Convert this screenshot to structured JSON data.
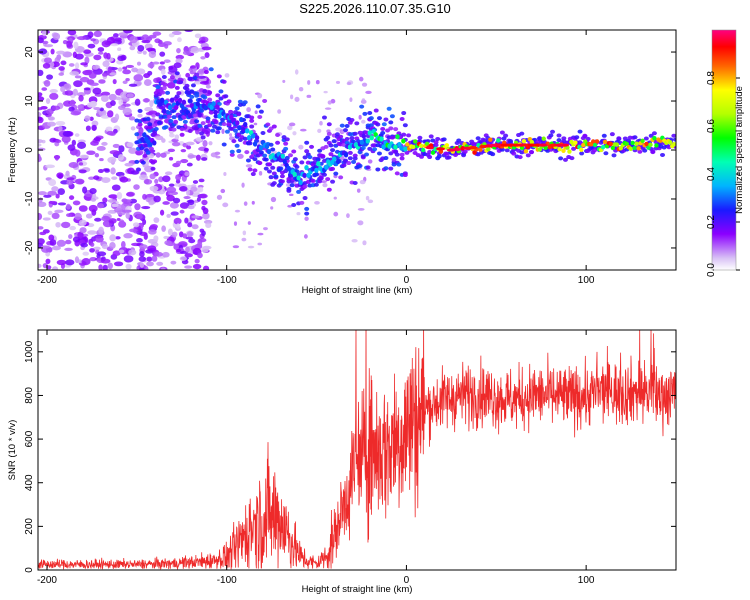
{
  "title": "S225.2026.110.07.35.G10",
  "chart_data": [
    {
      "type": "heatmap",
      "title": "S225.2026.110.07.35.G10",
      "xlabel": "Height of straight line (km)",
      "ylabel": "Frequency (Hz)",
      "xlim": [
        -205,
        150
      ],
      "ylim": [
        -24.5,
        24.5
      ],
      "xticks": [
        -200,
        -100,
        0,
        100
      ],
      "yticks": [
        20,
        10,
        0,
        -10,
        -20
      ],
      "colorbar": {
        "label": "Normalized spectral amplitude",
        "range": [
          0,
          1
        ],
        "ticks": [
          "0.0",
          "0.2",
          "0.4",
          "0.6",
          "0.8"
        ],
        "colors": [
          "#ffffff",
          "#c8a8f0",
          "#8b00ff",
          "#1a1aff",
          "#00c8ff",
          "#00ff80",
          "#80ff00",
          "#ffff00",
          "#ff8000",
          "#ff0000",
          "#ff0080"
        ]
      },
      "ridge": {
        "x": [
          -140,
          -130,
          -120,
          -110,
          -100,
          -90,
          -80,
          -70,
          -60,
          -50,
          -40,
          -30,
          -20,
          -10,
          0,
          25,
          50,
          75,
          100,
          125,
          150
        ],
        "freq": [
          9,
          10,
          8,
          9,
          7,
          4,
          1,
          -2,
          -6,
          -4,
          -2,
          1,
          3,
          1,
          1,
          0,
          1,
          1,
          1,
          1,
          2
        ]
      }
    },
    {
      "type": "line",
      "xlabel": "Height of straight line (km)",
      "ylabel": "SNR (10 * v/v)",
      "xlim": [
        -205,
        150
      ],
      "ylim": [
        0,
        1100
      ],
      "xticks": [
        -200,
        -100,
        0,
        100
      ],
      "yticks": [
        0,
        200,
        400,
        600,
        800,
        1000
      ],
      "color": "#ee2a2a",
      "series": [
        {
          "name": "SNR",
          "x": [
            -205,
            -190,
            -170,
            -150,
            -130,
            -110,
            -100,
            -95,
            -90,
            -85,
            -80,
            -75,
            -70,
            -65,
            -60,
            -55,
            -50,
            -45,
            -40,
            -35,
            -30,
            -25,
            -20,
            -15,
            -10,
            -5,
            0,
            5,
            10,
            20,
            30,
            40,
            50,
            60,
            70,
            80,
            90,
            100,
            110,
            120,
            130,
            140,
            150
          ],
          "values": [
            25,
            25,
            25,
            25,
            30,
            40,
            60,
            100,
            160,
            210,
            240,
            250,
            220,
            150,
            70,
            40,
            30,
            60,
            150,
            300,
            420,
            500,
            560,
            540,
            560,
            610,
            650,
            700,
            740,
            780,
            800,
            810,
            790,
            780,
            800,
            800,
            790,
            800,
            820,
            810,
            820,
            800,
            810
          ]
        }
      ]
    }
  ]
}
